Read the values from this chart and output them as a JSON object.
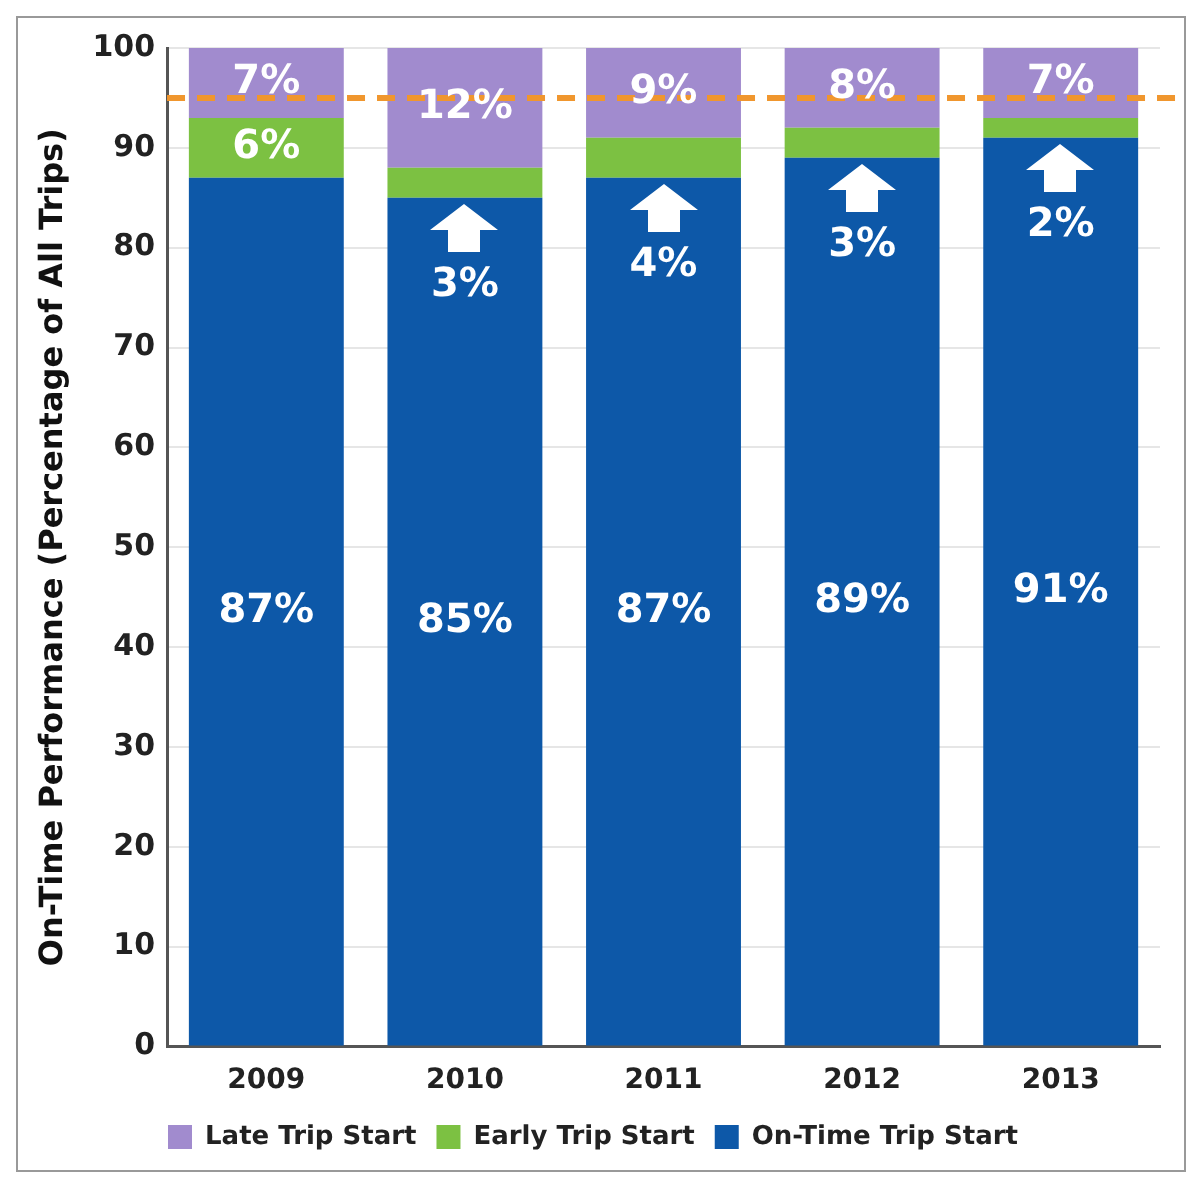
{
  "chart_data": {
    "type": "bar",
    "stacked": true,
    "ylabel": "On-Time Performance (Percentage of All Trips)",
    "categories": [
      "2009",
      "2010",
      "2011",
      "2012",
      "2013"
    ],
    "series": [
      {
        "name": "On-Time Trip Start",
        "color": "#0d58a8",
        "values": [
          87,
          85,
          87,
          89,
          91
        ],
        "value_labels": [
          "87%",
          "85%",
          "87%",
          "89%",
          "91%"
        ]
      },
      {
        "name": "Early Trip Start",
        "color": "#7cc142",
        "values": [
          6,
          3,
          4,
          3,
          2
        ],
        "value_labels": [
          "6%",
          "3%",
          "4%",
          "3%",
          "2%"
        ]
      },
      {
        "name": "Late Trip Start",
        "color": "#a18bce",
        "values": [
          7,
          12,
          9,
          8,
          7
        ],
        "value_labels": [
          "7%",
          "12%",
          "9%",
          "8%",
          "7%"
        ]
      }
    ],
    "ylim": [
      0,
      100
    ],
    "yticks": [
      0,
      10,
      20,
      30,
      40,
      50,
      60,
      70,
      80,
      90,
      100
    ],
    "grid": "y",
    "legend": "bottom",
    "ref_lines": [
      {
        "axis": "y",
        "value": 95,
        "color": "#f0962e",
        "line_style": "dashed"
      }
    ]
  }
}
